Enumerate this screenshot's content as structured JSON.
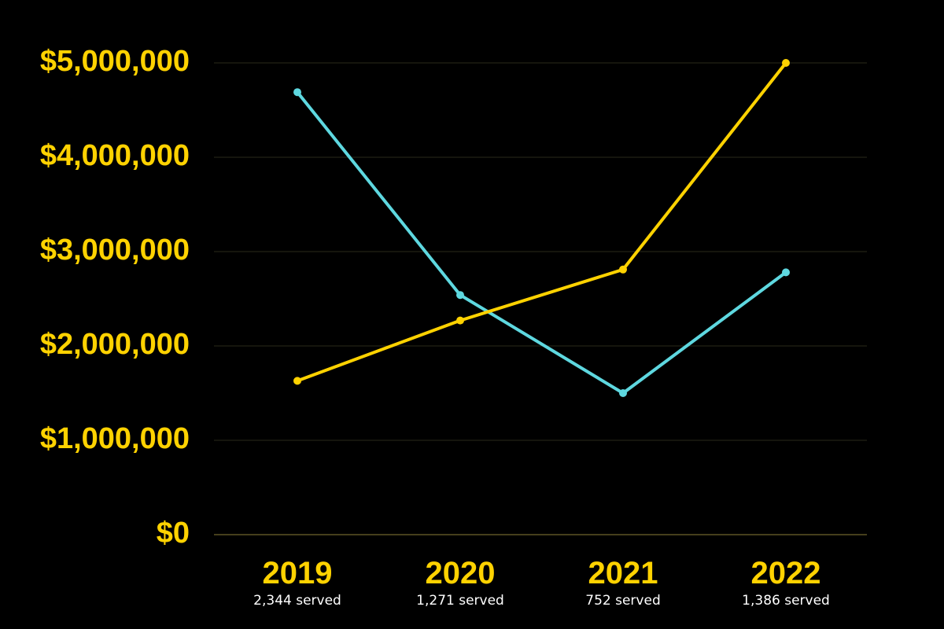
{
  "chart_data": {
    "type": "line",
    "title": "",
    "xlabel": "",
    "ylabel": "",
    "categories": [
      "2019",
      "2020",
      "2021",
      "2022"
    ],
    "category_sublabels": [
      "2,344 served",
      "1,271 served",
      "752 served",
      "1,386 served"
    ],
    "ylim": [
      0,
      5000000
    ],
    "y_ticks": [
      0,
      1000000,
      2000000,
      3000000,
      4000000,
      5000000
    ],
    "y_tick_labels": [
      "$0",
      "$1,000,000",
      "$2,000,000",
      "$3,000,000",
      "$4,000,000",
      "$5,000,000"
    ],
    "grid": true,
    "legend": "none",
    "series": [
      {
        "color": "#5ed8e0",
        "values": [
          4690000,
          2540000,
          1500000,
          2780000
        ]
      },
      {
        "color": "#ffd200",
        "values": [
          1630000,
          2270000,
          2810000,
          5000000
        ]
      }
    ],
    "colors": {
      "background": "#000000",
      "axis_label": "#ffd200",
      "sublabel": "#ffffff",
      "grid": "#2a2a1a",
      "baseline": "#5c5426"
    }
  }
}
